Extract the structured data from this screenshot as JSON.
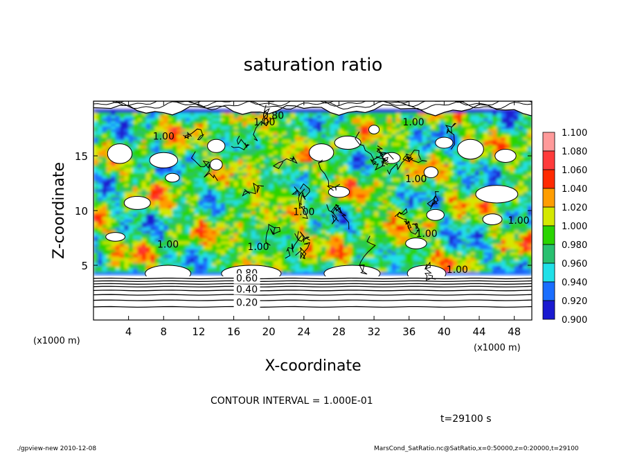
{
  "chart_data": {
    "type": "heatmap",
    "title": "saturation ratio",
    "xlabel": "X-coordinate",
    "ylabel": "Z-coordinate",
    "x_unit": "(x1000 m)",
    "y_unit": "(x1000 m)",
    "xlim": [
      0,
      50
    ],
    "ylim": [
      0,
      20
    ],
    "x_ticks": [
      4,
      8,
      12,
      16,
      20,
      24,
      28,
      32,
      36,
      40,
      44,
      48
    ],
    "y_ticks": [
      5,
      10,
      15
    ],
    "colorbar": {
      "labels": [
        "1.100",
        "1.080",
        "1.060",
        "1.040",
        "1.020",
        "1.000",
        "0.980",
        "0.960",
        "0.940",
        "0.920",
        "0.900"
      ],
      "colors": [
        "#ff9a9a",
        "#ff3b3b",
        "#ff2a00",
        "#ff9d00",
        "#d4e800",
        "#2ad400",
        "#29c070",
        "#20e0e8",
        "#1a6eff",
        "#1a1ad0",
        "#6a00b0"
      ]
    },
    "contour_labels": [
      {
        "text": "0.80",
        "x": 20.5,
        "z": 18.4
      },
      {
        "text": "1.00",
        "x": 19.5,
        "z": 17.8
      },
      {
        "text": "1.00",
        "x": 36.5,
        "z": 17.8
      },
      {
        "text": "1.00",
        "x": 8,
        "z": 16.5
      },
      {
        "text": "1.00",
        "x": 36.8,
        "z": 12.6
      },
      {
        "text": "1.00",
        "x": 24,
        "z": 9.6
      },
      {
        "text": "1.00",
        "x": 48.5,
        "z": 8.8
      },
      {
        "text": "1.00",
        "x": 38,
        "z": 7.6
      },
      {
        "text": "1.00",
        "x": 8.5,
        "z": 6.6
      },
      {
        "text": "1.00",
        "x": 18.8,
        "z": 6.4
      },
      {
        "text": "1.00",
        "x": 41.5,
        "z": 4.3
      },
      {
        "text": "0.80",
        "x": 17.5,
        "z": 4.0
      },
      {
        "text": "0.60",
        "x": 17.5,
        "z": 3.5
      },
      {
        "text": "0.40",
        "x": 17.5,
        "z": 2.5
      },
      {
        "text": "0.20",
        "x": 17.5,
        "z": 1.3
      }
    ],
    "grid": false
  },
  "contour_interval": "CONTOUR INTERVAL = 1.000E-01",
  "time_label": "t=29100 s",
  "footer_left": "./gpview-new   2010-12-08",
  "footer_right": "MarsCond_SatRatio.nc@SatRatio,x=0:50000,z=0:20000,t=29100"
}
